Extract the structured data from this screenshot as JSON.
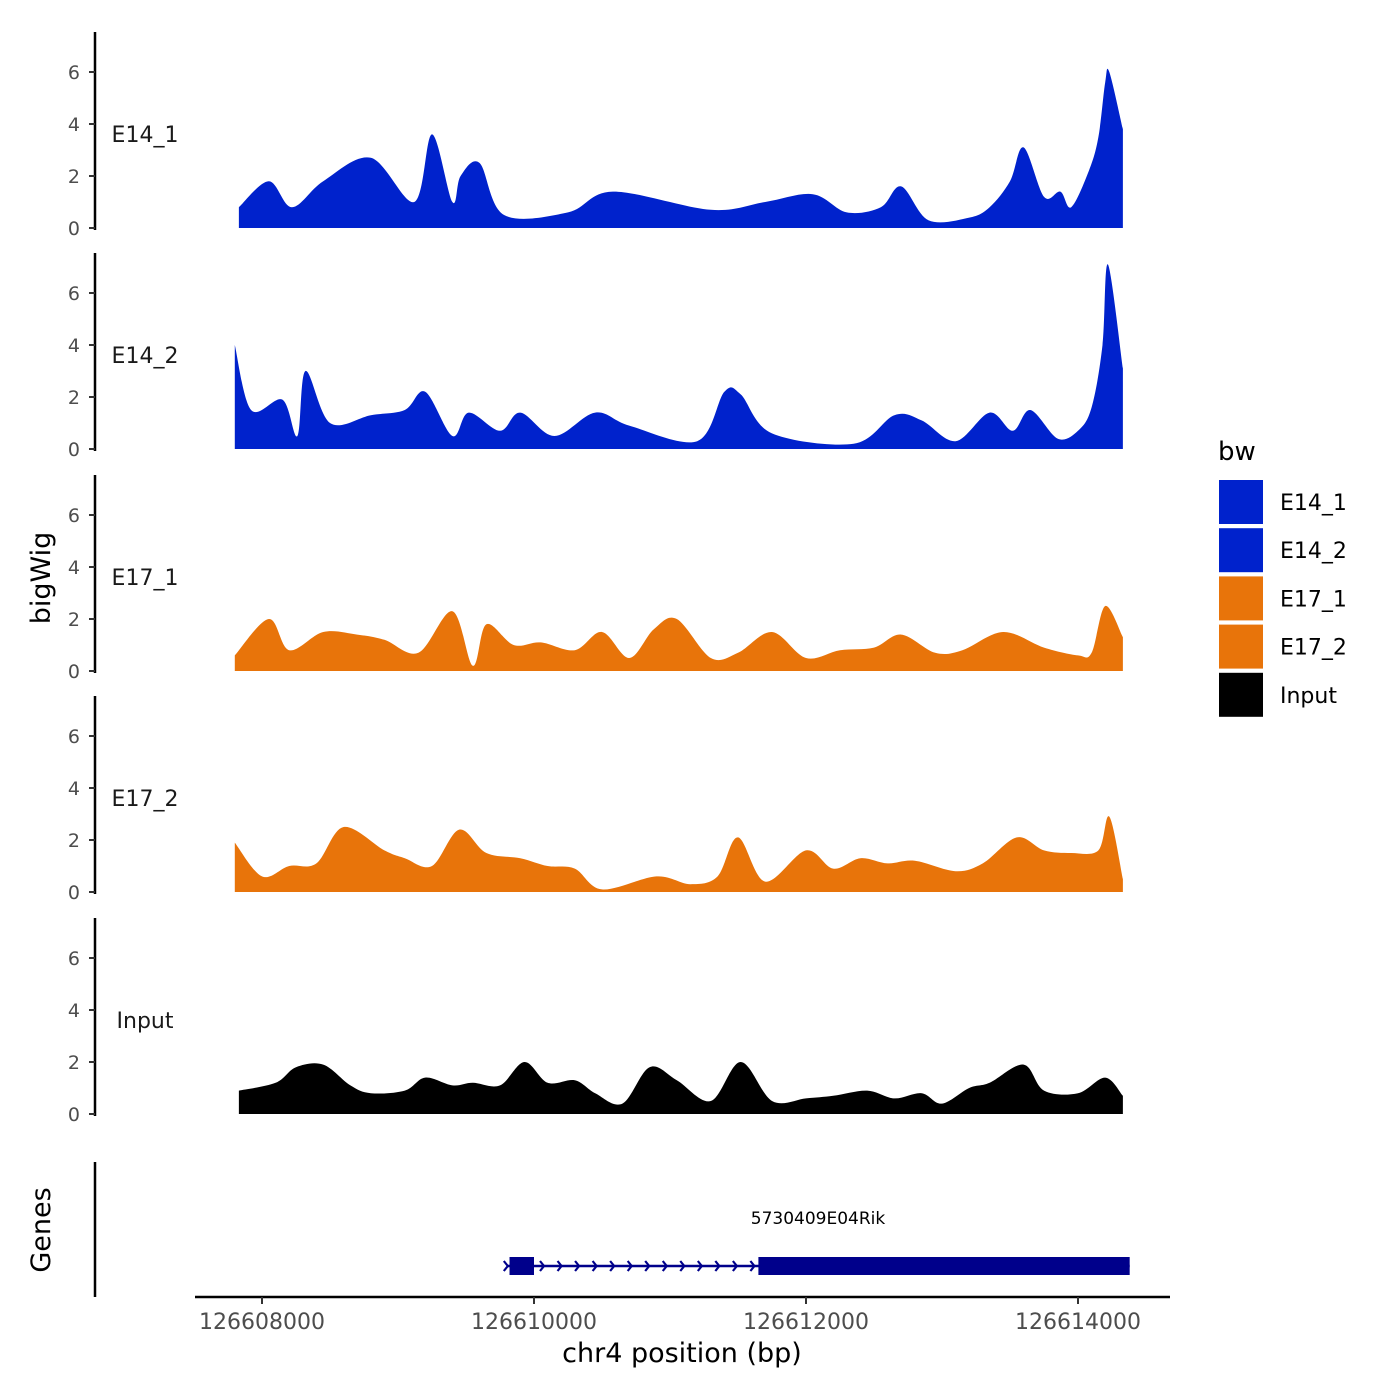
{
  "chart_data": {
    "type": "area",
    "title": "",
    "ylabel": "bigWig",
    "xlabel": "chr4 position (bp)",
    "xlim": [
      126607200,
      126614750
    ],
    "ylim": [
      0,
      7.4
    ],
    "y_ticks": [
      0,
      2,
      4,
      6
    ],
    "x_ticks": [
      126608000,
      126610000,
      126612000,
      126614000
    ],
    "x_tick_labels": [
      "126608000",
      "126610000",
      "126612000",
      "126614000"
    ],
    "legend": {
      "title": "bw",
      "position": "right",
      "entries": [
        {
          "label": "E14_1",
          "color": "#0022cc"
        },
        {
          "label": "E14_2",
          "color": "#0022cc"
        },
        {
          "label": "E17_1",
          "color": "#e8740a"
        },
        {
          "label": "E17_2",
          "color": "#e8740a"
        },
        {
          "label": "Input",
          "color": "#000000"
        }
      ]
    },
    "series": [
      {
        "name": "E14_1",
        "color": "#0022cc",
        "x": [
          126607830,
          126608050,
          126608220,
          126608450,
          126608800,
          126609120,
          126609250,
          126609400,
          126609460,
          126609600,
          126609780,
          126610250,
          126610580,
          126611300,
          126611700,
          126612050,
          126612300,
          126612550,
          126612700,
          126612900,
          126613200,
          126613350,
          126613500,
          126613600,
          126613750,
          126613870,
          126613950,
          126614080,
          126614150,
          126614200,
          126614230,
          126614330
        ],
        "values": [
          0.8,
          1.8,
          0.8,
          1.8,
          2.7,
          1.0,
          3.6,
          1.0,
          2.0,
          2.5,
          0.5,
          0.6,
          1.4,
          0.7,
          1.0,
          1.3,
          0.6,
          0.8,
          1.6,
          0.3,
          0.4,
          0.8,
          1.8,
          3.1,
          1.2,
          1.4,
          0.8,
          2.2,
          3.5,
          5.6,
          6.0,
          3.8
        ]
      },
      {
        "name": "E14_2",
        "color": "#0022cc",
        "x": [
          126607800,
          126607920,
          126608150,
          126608260,
          126608320,
          126608500,
          126608800,
          126609050,
          126609200,
          126609400,
          126609520,
          126609750,
          126609900,
          126610150,
          126610450,
          126610700,
          126611200,
          126611400,
          126611520,
          126611750,
          126612350,
          126612650,
          126612850,
          126613100,
          126613350,
          126613520,
          126613650,
          126613850,
          126614000,
          126614100,
          126614180,
          126614220,
          126614330
        ],
        "values": [
          4.0,
          1.5,
          1.9,
          0.5,
          3.0,
          1.0,
          1.3,
          1.5,
          2.2,
          0.5,
          1.4,
          0.7,
          1.4,
          0.5,
          1.4,
          0.9,
          0.3,
          2.2,
          2.1,
          0.6,
          0.2,
          1.3,
          1.1,
          0.3,
          1.4,
          0.7,
          1.5,
          0.4,
          0.7,
          1.6,
          4.0,
          7.1,
          3.1
        ]
      },
      {
        "name": "E17_1",
        "color": "#e8740a",
        "x": [
          126607800,
          126608050,
          126608200,
          126608450,
          126608700,
          126608900,
          126609150,
          126609400,
          126609550,
          126609650,
          126609850,
          126610050,
          126610300,
          126610500,
          126610700,
          126610880,
          126611050,
          126611300,
          126611500,
          126611750,
          126612000,
          126612250,
          126612500,
          126612700,
          126612950,
          126613150,
          126613450,
          126613750,
          126614000,
          126614100,
          126614200,
          126614330
        ],
        "values": [
          0.6,
          2.0,
          0.8,
          1.5,
          1.4,
          1.2,
          0.7,
          2.3,
          0.2,
          1.8,
          1.0,
          1.1,
          0.8,
          1.5,
          0.5,
          1.6,
          2.0,
          0.5,
          0.7,
          1.5,
          0.5,
          0.8,
          0.9,
          1.4,
          0.7,
          0.8,
          1.5,
          0.9,
          0.6,
          0.7,
          2.5,
          1.3
        ]
      },
      {
        "name": "E17_2",
        "color": "#e8740a",
        "x": [
          126607800,
          126608000,
          126608200,
          126608400,
          126608600,
          126608900,
          126609050,
          126609250,
          126609450,
          126609650,
          126609900,
          126610100,
          126610300,
          126610500,
          126610900,
          126611150,
          126611350,
          126611500,
          126611700,
          126612000,
          126612200,
          126612400,
          126612600,
          126612800,
          126613100,
          126613300,
          126613550,
          126613750,
          126613950,
          126614150,
          126614230,
          126614330
        ],
        "values": [
          1.9,
          0.6,
          1.0,
          1.1,
          2.5,
          1.6,
          1.3,
          1.0,
          2.4,
          1.5,
          1.3,
          1.0,
          0.9,
          0.1,
          0.6,
          0.3,
          0.6,
          2.1,
          0.4,
          1.6,
          0.9,
          1.3,
          1.1,
          1.2,
          0.8,
          1.1,
          2.1,
          1.6,
          1.5,
          1.6,
          2.9,
          0.5
        ]
      },
      {
        "name": "Input",
        "color": "#000000",
        "x": [
          126607830,
          126608100,
          126608250,
          126608450,
          126608650,
          126608800,
          126609050,
          126609200,
          126609400,
          126609550,
          126609750,
          126609930,
          126610100,
          126610300,
          126610450,
          126610650,
          126610850,
          126611050,
          126611300,
          126611520,
          126611750,
          126612000,
          126612200,
          126612450,
          126612650,
          126612850,
          126613000,
          126613200,
          126613350,
          126613600,
          126613750,
          126614000,
          126614200,
          126614330
        ],
        "values": [
          0.9,
          1.2,
          1.8,
          1.9,
          1.1,
          0.8,
          0.9,
          1.4,
          1.1,
          1.2,
          1.1,
          2.0,
          1.2,
          1.3,
          0.8,
          0.4,
          1.8,
          1.3,
          0.5,
          2.0,
          0.5,
          0.6,
          0.7,
          0.9,
          0.6,
          0.8,
          0.4,
          1.0,
          1.2,
          1.9,
          0.9,
          0.8,
          1.4,
          0.7
        ]
      }
    ],
    "genes": {
      "panel_label": "Genes",
      "name": "5730409E04Rik",
      "strand": "+",
      "start": 126609800,
      "end": 126614380,
      "exons": [
        [
          126609820,
          126610000
        ],
        [
          126611650,
          126614380
        ]
      ]
    }
  }
}
